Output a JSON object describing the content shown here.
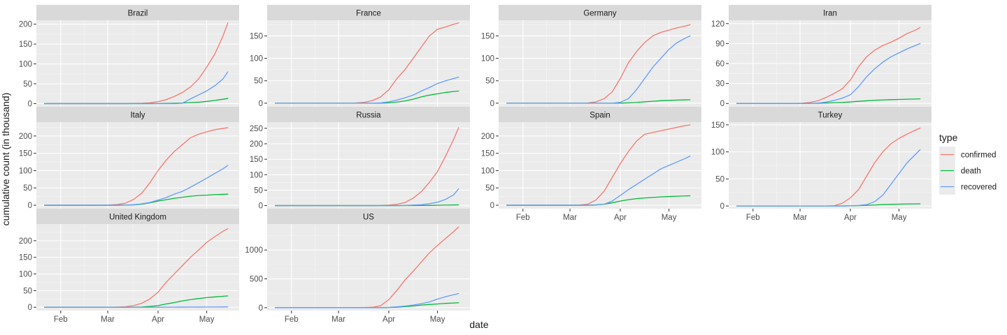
{
  "chart_data": {
    "type": "line",
    "layout": "facet-wrap",
    "xlabel": "date",
    "ylabel": "cumulative count (in thousand)",
    "x_axis": {
      "unit": "days since Jan 22",
      "range": [
        -5,
        120
      ],
      "ticks": [
        {
          "label": "Feb",
          "value": 10
        },
        {
          "label": "Mar",
          "value": 39
        },
        {
          "label": "Apr",
          "value": 70
        },
        {
          "label": "May",
          "value": 100
        }
      ]
    },
    "legend": {
      "title": "type",
      "placement": "right",
      "entries": [
        {
          "label": "confirmed",
          "color": "#F8766D"
        },
        {
          "label": "death",
          "color": "#00BA38"
        },
        {
          "label": "recovered",
          "color": "#619CFF"
        }
      ]
    },
    "day_grid": [
      0,
      10,
      20,
      30,
      35,
      40,
      45,
      50,
      55,
      60,
      65,
      70,
      75,
      80,
      85,
      90,
      95,
      100,
      105,
      110,
      113
    ],
    "panels": [
      {
        "title": "Brazil",
        "ylim": [
          -8,
          210
        ],
        "y_ticks": [
          0,
          50,
          100,
          150,
          200
        ],
        "series": [
          {
            "type": "confirmed",
            "values": [
              0,
              0,
              0,
              0,
              0,
              0,
              0,
              0,
              0.5,
              1,
              2,
              5,
              10,
              18,
              28,
              42,
              62,
              92,
              125,
              170,
              203
            ]
          },
          {
            "type": "death",
            "values": [
              0,
              0,
              0,
              0,
              0,
              0,
              0,
              0,
              0,
              0,
              0,
              0.2,
              0.5,
              0.9,
              1.5,
              2.5,
              3.5,
              5.5,
              8,
              11,
              13
            ]
          },
          {
            "type": "recovered",
            "values": [
              0,
              0,
              0,
              0,
              0,
              0,
              0,
              0,
              0,
              0,
              0,
              0,
              0,
              0,
              1,
              12,
              22,
              32,
              45,
              62,
              80
            ]
          }
        ]
      },
      {
        "title": "France",
        "ylim": [
          -8,
          185
        ],
        "y_ticks": [
          0,
          50,
          100,
          150
        ],
        "series": [
          {
            "type": "confirmed",
            "values": [
              0,
              0,
              0,
              0,
              0,
              0,
              0,
              0.5,
              2,
              6,
              14,
              30,
              55,
              75,
              100,
              125,
              150,
              165,
              170,
              176,
              179
            ]
          },
          {
            "type": "death",
            "values": [
              0,
              0,
              0,
              0,
              0,
              0,
              0,
              0,
              0,
              0,
              0.2,
              0.8,
              2.5,
              5,
              9,
              14,
              18,
              21,
              24,
              26,
              27
            ]
          },
          {
            "type": "recovered",
            "values": [
              0,
              0,
              0,
              0,
              0,
              0,
              0,
              0,
              0,
              0,
              0.8,
              3,
              7,
              12,
              18,
              27,
              35,
              44,
              50,
              55,
              58
            ]
          }
        ]
      },
      {
        "title": "Germany",
        "ylim": [
          -8,
          185
        ],
        "y_ticks": [
          0,
          50,
          100,
          150
        ],
        "series": [
          {
            "type": "confirmed",
            "values": [
              0,
              0,
              0,
              0,
              0,
              0,
              0,
              0.5,
              3,
              10,
              25,
              55,
              90,
              115,
              135,
              150,
              158,
              163,
              168,
              172,
              175
            ]
          },
          {
            "type": "death",
            "values": [
              0,
              0,
              0,
              0,
              0,
              0,
              0,
              0,
              0,
              0,
              0,
              0.2,
              0.8,
              1.7,
              3,
              4.2,
              5.5,
              6.3,
              7,
              7.5,
              7.6
            ]
          },
          {
            "type": "recovered",
            "values": [
              0,
              0,
              0,
              0,
              0,
              0,
              0,
              0,
              0,
              0,
              0,
              2,
              10,
              30,
              55,
              80,
              100,
              120,
              135,
              145,
              150
            ]
          }
        ]
      },
      {
        "title": "Iran",
        "ylim": [
          -5,
          125
        ],
        "y_ticks": [
          0,
          30,
          60,
          90,
          120
        ],
        "series": [
          {
            "type": "confirmed",
            "values": [
              0,
              0,
              0,
              0,
              0,
              0.2,
              1.5,
              4,
              9,
              15,
              22,
              35,
              55,
              70,
              80,
              87,
              92,
              98,
              105,
              110,
              114
            ]
          },
          {
            "type": "death",
            "values": [
              0,
              0,
              0,
              0,
              0,
              0,
              0.1,
              0.3,
              0.6,
              1,
              1.5,
              2.3,
              3.2,
              4,
              4.8,
              5.2,
              5.7,
              6,
              6.4,
              6.7,
              6.9
            ]
          },
          {
            "type": "recovered",
            "values": [
              0,
              0,
              0,
              0,
              0,
              0,
              0.1,
              0.6,
              2,
              4.5,
              8,
              13,
              25,
              40,
              52,
              62,
              70,
              76,
              82,
              87,
              90
            ]
          }
        ]
      },
      {
        "title": "Italy",
        "ylim": [
          -10,
          240
        ],
        "y_ticks": [
          0,
          50,
          100,
          150,
          200
        ],
        "series": [
          {
            "type": "confirmed",
            "values": [
              0,
              0,
              0,
              0,
              0,
              0.5,
              2,
              6,
              17,
              35,
              65,
              100,
              130,
              155,
              175,
              195,
              205,
              212,
              218,
              222,
              224
            ]
          },
          {
            "type": "death",
            "values": [
              0,
              0,
              0,
              0,
              0,
              0,
              0,
              0.3,
              1,
              3,
              7,
              12,
              16,
              20,
              23,
              26,
              28,
              29,
              30.5,
              31.5,
              32
            ]
          },
          {
            "type": "recovered",
            "values": [
              0,
              0,
              0,
              0,
              0,
              0,
              0,
              0.3,
              1.5,
              4,
              8,
              15,
              22,
              32,
              40,
              52,
              65,
              78,
              92,
              105,
              115
            ]
          }
        ]
      },
      {
        "title": "Russia",
        "ylim": [
          -10,
          270
        ],
        "y_ticks": [
          0,
          50,
          100,
          150,
          200,
          250
        ],
        "series": [
          {
            "type": "confirmed",
            "values": [
              0,
              0,
              0,
              0,
              0,
              0,
              0,
              0,
              0,
              0,
              0.5,
              1.5,
              4,
              10,
              24,
              45,
              75,
              110,
              160,
              215,
              252
            ]
          },
          {
            "type": "death",
            "values": [
              0,
              0,
              0,
              0,
              0,
              0,
              0,
              0,
              0,
              0,
              0,
              0,
              0,
              0.1,
              0.2,
              0.4,
              0.6,
              1,
              1.6,
              2,
              2.3
            ]
          },
          {
            "type": "recovered",
            "values": [
              0,
              0,
              0,
              0,
              0,
              0,
              0,
              0,
              0,
              0,
              0,
              0,
              0,
              0.5,
              1.5,
              3,
              6,
              11,
              20,
              35,
              54
            ]
          }
        ]
      },
      {
        "title": "Spain",
        "ylim": [
          -10,
          240
        ],
        "y_ticks": [
          0,
          50,
          100,
          150,
          200
        ],
        "series": [
          {
            "type": "confirmed",
            "values": [
              0,
              0,
              0,
              0,
              0,
              0,
              0.5,
              3,
              15,
              40,
              80,
              120,
              155,
              185,
              205,
              210,
              215,
              220,
              225,
              230,
              232
            ]
          },
          {
            "type": "death",
            "values": [
              0,
              0,
              0,
              0,
              0,
              0,
              0,
              0.1,
              1,
              3,
              7,
              12,
              16,
              19,
              21,
              22.5,
              24,
              25.2,
              26,
              26.8,
              27.2
            ]
          },
          {
            "type": "recovered",
            "values": [
              0,
              0,
              0,
              0,
              0,
              0,
              0,
              0,
              0.5,
              3,
              12,
              28,
              45,
              60,
              75,
              90,
              105,
              115,
              125,
              135,
              142
            ]
          }
        ]
      },
      {
        "title": "Turkey",
        "ylim": [
          -5,
          155
        ],
        "y_ticks": [
          0,
          50,
          100,
          150
        ],
        "series": [
          {
            "type": "confirmed",
            "values": [
              0,
              0,
              0,
              0,
              0,
              0,
              0,
              0,
              0,
              0.5,
              5,
              15,
              30,
              55,
              80,
              100,
              115,
              125,
              133,
              140,
              144
            ]
          },
          {
            "type": "death",
            "values": [
              0,
              0,
              0,
              0,
              0,
              0,
              0,
              0,
              0,
              0,
              0.1,
              0.3,
              0.6,
              1.2,
              1.8,
              2.5,
              3,
              3.4,
              3.7,
              3.9,
              4
            ]
          },
          {
            "type": "recovered",
            "values": [
              0,
              0,
              0,
              0,
              0,
              0,
              0,
              0,
              0,
              0,
              0,
              0.3,
              1,
              2.5,
              8,
              20,
              40,
              60,
              80,
              95,
              104
            ]
          }
        ]
      },
      {
        "title": "United Kingdom",
        "ylim": [
          -10,
          250
        ],
        "y_ticks": [
          0,
          50,
          100,
          150,
          200
        ],
        "series": [
          {
            "type": "confirmed",
            "values": [
              0,
              0,
              0,
              0,
              0,
              0,
              0.5,
              1.5,
              5,
              12,
              25,
              45,
              75,
              100,
              125,
              150,
              172,
              195,
              212,
              228,
              236
            ]
          },
          {
            "type": "death",
            "values": [
              0,
              0,
              0,
              0,
              0,
              0,
              0,
              0,
              0.2,
              0.8,
              2.5,
              5,
              10,
              14,
              19,
              23,
              26,
              29,
              31,
              33,
              34
            ]
          },
          {
            "type": "recovered",
            "values": [
              0,
              0,
              0,
              0,
              0,
              0,
              0,
              0,
              0,
              0,
              0,
              0.1,
              0.2,
              0.3,
              0.4,
              0.5,
              0.6,
              0.7,
              0.8,
              0.9,
              1
            ]
          }
        ]
      },
      {
        "title": "US",
        "ylim": [
          -50,
          1450
        ],
        "y_ticks": [
          0,
          500,
          1000
        ],
        "series": [
          {
            "type": "confirmed",
            "values": [
              0,
              0,
              0,
              0,
              0,
              0,
              0,
              0.5,
              2,
              8,
              35,
              140,
              300,
              480,
              630,
              790,
              950,
              1080,
              1200,
              1320,
              1400
            ]
          },
          {
            "type": "death",
            "values": [
              0,
              0,
              0,
              0,
              0,
              0,
              0,
              0,
              0,
              0,
              0.5,
              3,
              8,
              18,
              30,
              45,
              55,
              65,
              75,
              82,
              86
            ]
          },
          {
            "type": "recovered",
            "values": [
              0,
              0,
              0,
              0,
              0,
              0,
              0,
              0,
              0,
              0,
              0.5,
              5,
              15,
              28,
              45,
              70,
              100,
              150,
              190,
              225,
              245
            ]
          }
        ]
      }
    ]
  }
}
